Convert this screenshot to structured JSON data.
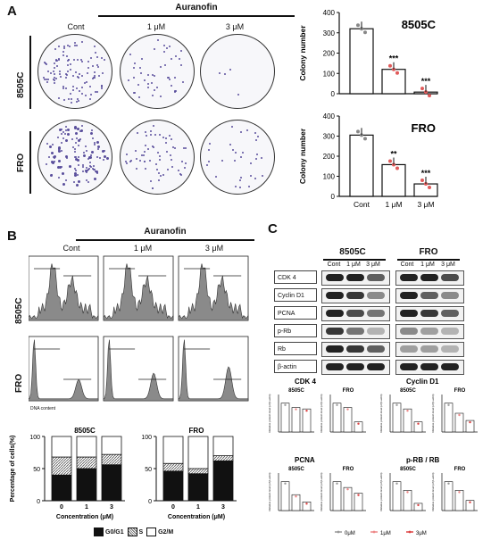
{
  "panels": {
    "a": "A",
    "b": "B",
    "c": "C"
  },
  "treatment": "Auranofin",
  "doses": [
    "Cont",
    "1 μM",
    "3 μM"
  ],
  "cell_lines": [
    "8505C",
    "FRO"
  ],
  "colony": {
    "ylabel": "Colony number",
    "sig_8505C": [
      "***",
      "***"
    ],
    "sig_FRO": [
      "**",
      "***"
    ],
    "xticks": [
      "Cont",
      "1 μM",
      "3 μM"
    ]
  },
  "cell_cycle": {
    "xlabel": "Concentration (μM)",
    "ylabel": "Percentage of cells(%)",
    "xticks": [
      "0",
      "1",
      "3"
    ],
    "legend": [
      "G0/G1",
      "S",
      "G2/M"
    ],
    "dna_content": "DNA content"
  },
  "western": {
    "columns": [
      "Cont",
      "1 μM",
      "3 μM"
    ],
    "proteins": [
      "CDK 4",
      "Cyclin D1",
      "PCNA",
      "p-Rb",
      "Rb",
      "β-actin"
    ],
    "quant_titles": [
      "CDK 4",
      "Cyclin D1",
      "PCNA",
      "p-RB / RB"
    ],
    "quant_ylabel": "Relative protein level (of β-actin)",
    "legend": [
      "0μM",
      "1μM",
      "3μM"
    ]
  },
  "chart_data": [
    {
      "type": "bar",
      "title": "8505C",
      "categories": [
        "Cont",
        "1 μM",
        "3 μM"
      ],
      "values": [
        320,
        120,
        8
      ],
      "ylabel": "Colony number",
      "ylim": [
        0,
        400
      ],
      "yticks": [
        0,
        100,
        200,
        300,
        400
      ]
    },
    {
      "type": "bar",
      "title": "FRO",
      "categories": [
        "Cont",
        "1 μM",
        "3 μM"
      ],
      "values": [
        305,
        158,
        62
      ],
      "ylabel": "Colony number",
      "ylim": [
        0,
        400
      ],
      "yticks": [
        0,
        100,
        200,
        300,
        400
      ]
    },
    {
      "type": "bar",
      "title": "8505C",
      "categories": [
        "0",
        "1",
        "3"
      ],
      "series": [
        {
          "name": "G0/G1",
          "values": [
            40,
            50,
            56
          ]
        },
        {
          "name": "S",
          "values": [
            28,
            18,
            16
          ]
        },
        {
          "name": "G2/M",
          "values": [
            32,
            32,
            28
          ]
        }
      ],
      "ylim": [
        0,
        100
      ],
      "yticks": [
        0,
        50,
        100
      ]
    },
    {
      "type": "bar",
      "title": "FRO",
      "categories": [
        "0",
        "1",
        "3"
      ],
      "series": [
        {
          "name": "G0/G1",
          "values": [
            46,
            42,
            62
          ]
        },
        {
          "name": "S",
          "values": [
            12,
            8,
            8
          ]
        },
        {
          "name": "G2/M",
          "values": [
            42,
            50,
            30
          ]
        }
      ],
      "ylim": [
        0,
        100
      ],
      "yticks": [
        0,
        50,
        100
      ]
    }
  ],
  "quant_values": {
    "cdk4_8505C": [
      1.0,
      0.85,
      0.8
    ],
    "cdk4_FRO": [
      1.0,
      0.85,
      0.35
    ],
    "cyclin_8505C": [
      1.0,
      0.8,
      0.35
    ],
    "cyclin_FRO": [
      1.0,
      0.65,
      0.4
    ],
    "pcna_8505C": [
      1.0,
      0.55,
      0.3
    ],
    "pcna_FRO": [
      1.0,
      0.8,
      0.6
    ],
    "prb_8505C": [
      1.0,
      0.7,
      0.25
    ],
    "prb_FRO": [
      1.0,
      0.7,
      0.35
    ]
  }
}
